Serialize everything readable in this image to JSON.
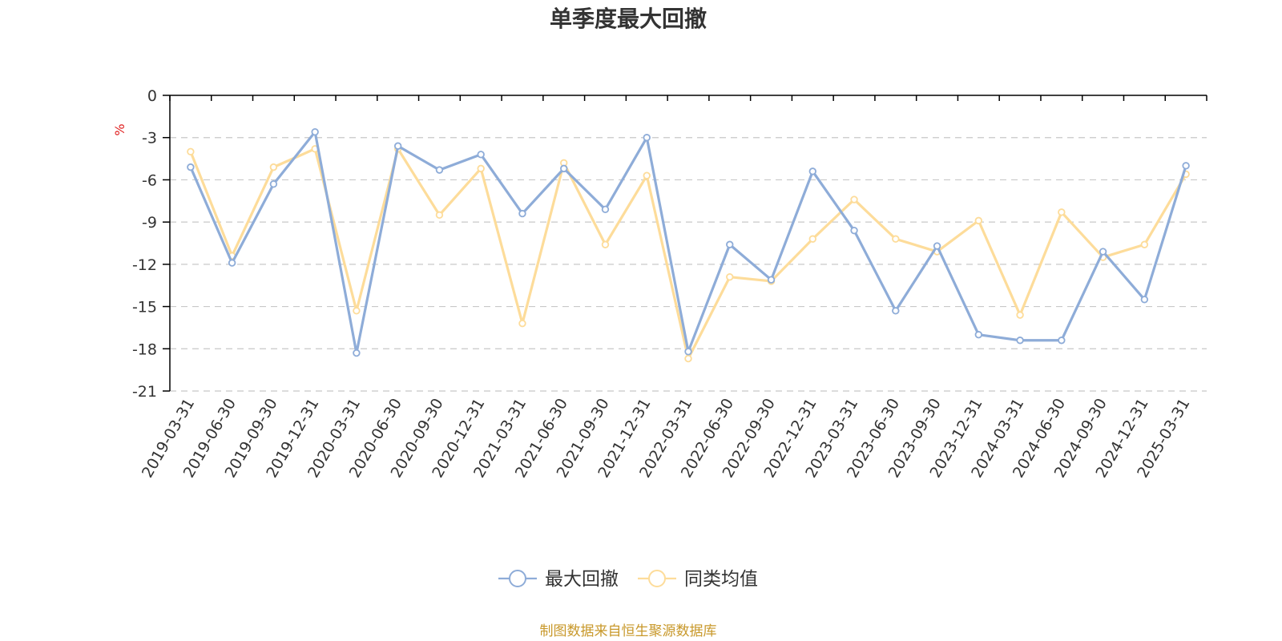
{
  "chart_data": {
    "type": "line",
    "title": "单季度最大回撤",
    "ylabel": "%",
    "xlabel": "",
    "ylim": [
      -21,
      0
    ],
    "yticks": [
      0,
      -3,
      -6,
      -9,
      -12,
      -15,
      -18,
      -21
    ],
    "categories": [
      "2019-03-31",
      "2019-06-30",
      "2019-09-30",
      "2019-12-31",
      "2020-03-31",
      "2020-06-30",
      "2020-09-30",
      "2020-12-31",
      "2021-03-31",
      "2021-06-30",
      "2021-09-30",
      "2021-12-31",
      "2022-03-31",
      "2022-06-30",
      "2022-09-30",
      "2022-12-31",
      "2023-03-31",
      "2023-06-30",
      "2023-09-30",
      "2023-12-31",
      "2024-03-31",
      "2024-06-30",
      "2024-09-30",
      "2024-12-31",
      "2025-03-31"
    ],
    "series": [
      {
        "name": "最大回撤",
        "color": "#8eacd8",
        "values": [
          -5.1,
          -11.9,
          -6.3,
          -2.6,
          -18.3,
          -3.6,
          -5.3,
          -4.2,
          -8.4,
          -5.2,
          -8.1,
          -3.0,
          -18.2,
          -10.6,
          -13.1,
          -5.4,
          -9.6,
          -15.3,
          -10.7,
          -17.0,
          -17.4,
          -17.4,
          -11.1,
          -14.5,
          -5.0
        ]
      },
      {
        "name": "同类均值",
        "color": "#fddc9a",
        "values": [
          -4.0,
          -11.4,
          -5.1,
          -3.8,
          -15.3,
          -3.8,
          -8.5,
          -5.2,
          -16.2,
          -4.8,
          -10.6,
          -5.7,
          -18.7,
          -12.9,
          -13.2,
          -10.2,
          -7.4,
          -10.2,
          -11.1,
          -8.9,
          -15.6,
          -8.3,
          -11.5,
          -10.6,
          -5.6
        ]
      }
    ],
    "legend_position": "bottom-center",
    "grid": true
  },
  "source_note": "制图数据来自恒生聚源数据库"
}
